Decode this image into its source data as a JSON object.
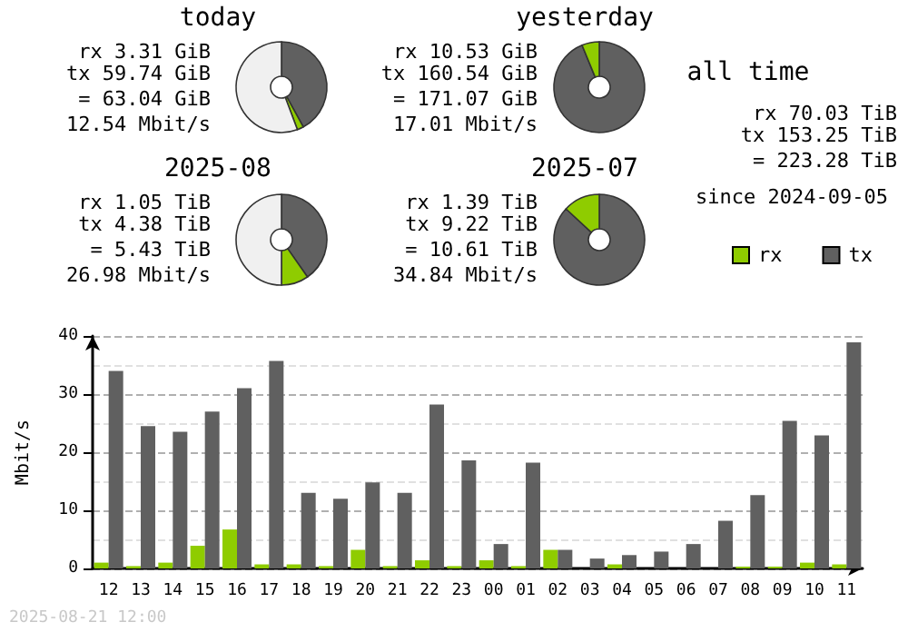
{
  "chart_data": [
    {
      "type": "donut",
      "title": "today",
      "categories": [
        null,
        null,
        null
      ],
      "values": [
        42,
        2.3,
        55.7
      ],
      "colors": [
        "#606060",
        "#8fcc00",
        "#f0f0f0"
      ],
      "annotations": [
        "rx 3.31 GiB",
        "tx 59.74 GiB",
        "= 63.04 GiB",
        "12.54 Mbit/s"
      ]
    },
    {
      "type": "donut",
      "title": "yesterday",
      "categories": [
        null,
        null
      ],
      "values": [
        93.8,
        6.2
      ],
      "colors": [
        "#606060",
        "#8fcc00"
      ],
      "annotations": [
        "rx 10.53 GiB",
        "tx 160.54 GiB",
        "= 171.07 GiB",
        "17.01 Mbit/s"
      ]
    },
    {
      "type": "other",
      "title": "all time",
      "annotations": [
        "rx 70.03 TiB",
        "tx 153.25 TiB",
        "= 223.28 TiB",
        "since 2024-09-05"
      ]
    },
    {
      "type": "donut",
      "title": "2025-08",
      "categories": [
        null,
        null,
        null
      ],
      "values": [
        40.3,
        9.7,
        50
      ],
      "colors": [
        "#606060",
        "#8fcc00",
        "#f0f0f0"
      ],
      "annotations": [
        "rx 1.05 TiB",
        "tx 4.38 TiB",
        "= 5.43 TiB",
        "26.98 Mbit/s"
      ]
    },
    {
      "type": "donut",
      "title": "2025-07",
      "categories": [
        null,
        null
      ],
      "values": [
        86.9,
        13.1
      ],
      "colors": [
        "#606060",
        "#8fcc00"
      ],
      "annotations": [
        "rx 1.39 TiB",
        "tx 9.22 TiB",
        "= 10.61 TiB",
        "34.84 Mbit/s"
      ]
    },
    {
      "type": "bar",
      "ylabel": "Mbit/s",
      "categories": [
        "12",
        "13",
        "14",
        "15",
        "16",
        "17",
        "18",
        "19",
        "20",
        "21",
        "22",
        "23",
        "00",
        "01",
        "02",
        "03",
        "04",
        "05",
        "06",
        "07",
        "08",
        "09",
        "10",
        "11"
      ],
      "series": [
        {
          "name": "rx",
          "color": "#8fcc00",
          "values": [
            1,
            0.4,
            1,
            3.9,
            6.7,
            0.7,
            0.7,
            0.4,
            3.2,
            0.4,
            1.4,
            0.4,
            1.4,
            0.4,
            3.2,
            0,
            0.7,
            0,
            0,
            0,
            0.3,
            0.3,
            1,
            0.7
          ]
        },
        {
          "name": "tx",
          "color": "#606060",
          "values": [
            34,
            24.5,
            23.5,
            27,
            31,
            35.7,
            13,
            12,
            14.8,
            13,
            28.2,
            18.6,
            4.2,
            18.2,
            3.2,
            1.7,
            2.3,
            2.9,
            4.2,
            8.2,
            12.6,
            25.4,
            22.9,
            38.9
          ]
        }
      ],
      "ylim": [
        0,
        40
      ],
      "yticks": [
        0,
        10,
        20,
        30,
        40
      ],
      "grid": "y",
      "legend": "top right",
      "annotations": [
        "2025-08-21 12:00"
      ]
    }
  ]
}
